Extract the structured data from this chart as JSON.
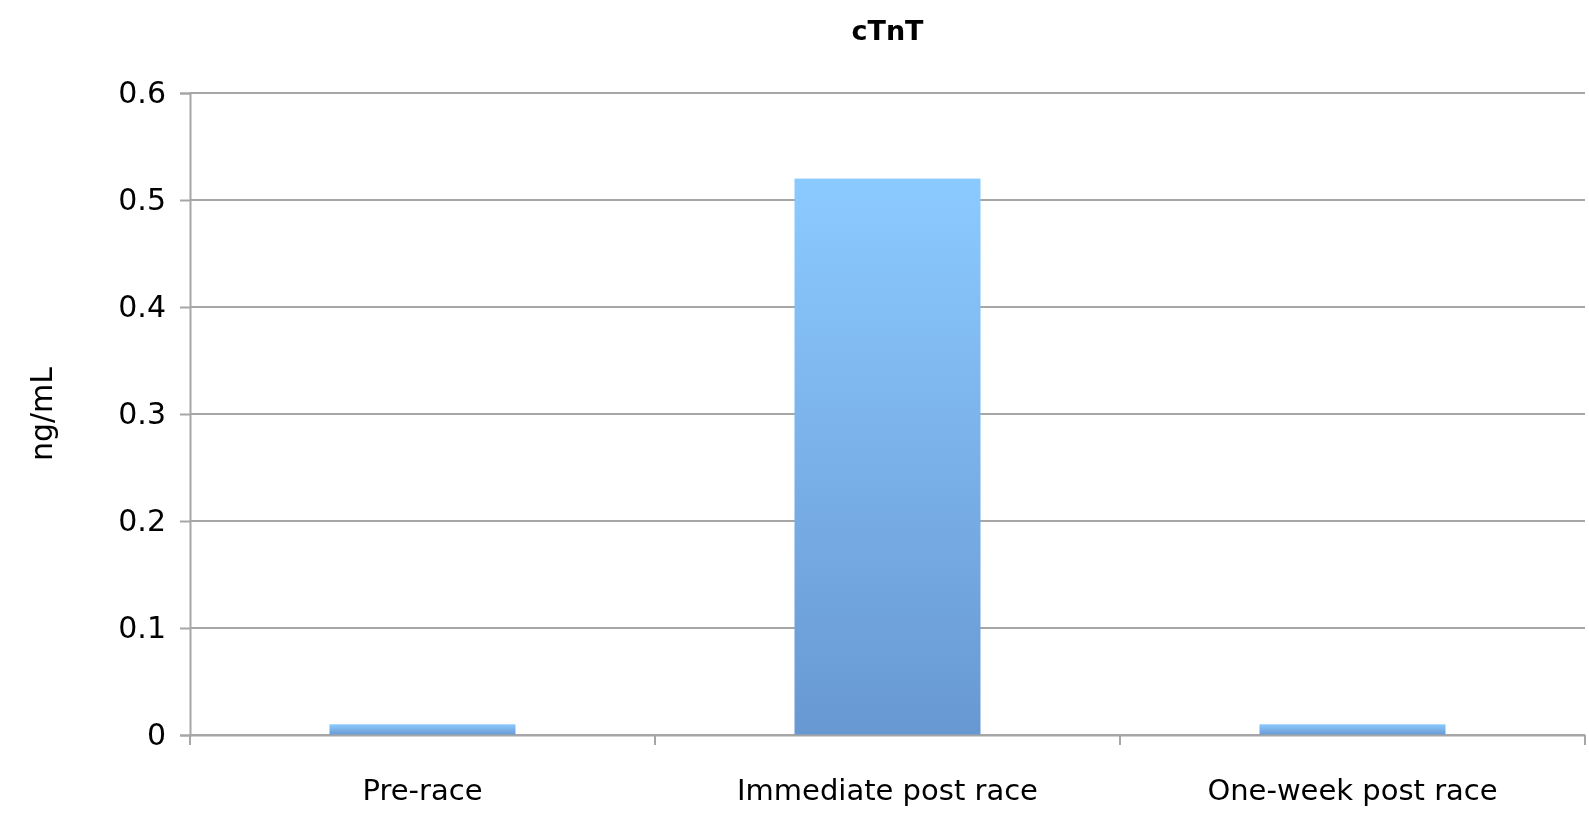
{
  "chart_data": {
    "type": "bar",
    "title": "cTnT",
    "ylabel": "ng/mL",
    "categories": [
      "Pre-race",
      "Immediate post race",
      "One-week post race"
    ],
    "values": [
      0.01,
      0.52,
      0.01
    ],
    "color": "#74a9ea",
    "ylim": [
      0,
      0.6
    ],
    "yticks": [
      0,
      0.1,
      0.2,
      0.3,
      0.4,
      0.5,
      0.6
    ],
    "grid": "y"
  }
}
